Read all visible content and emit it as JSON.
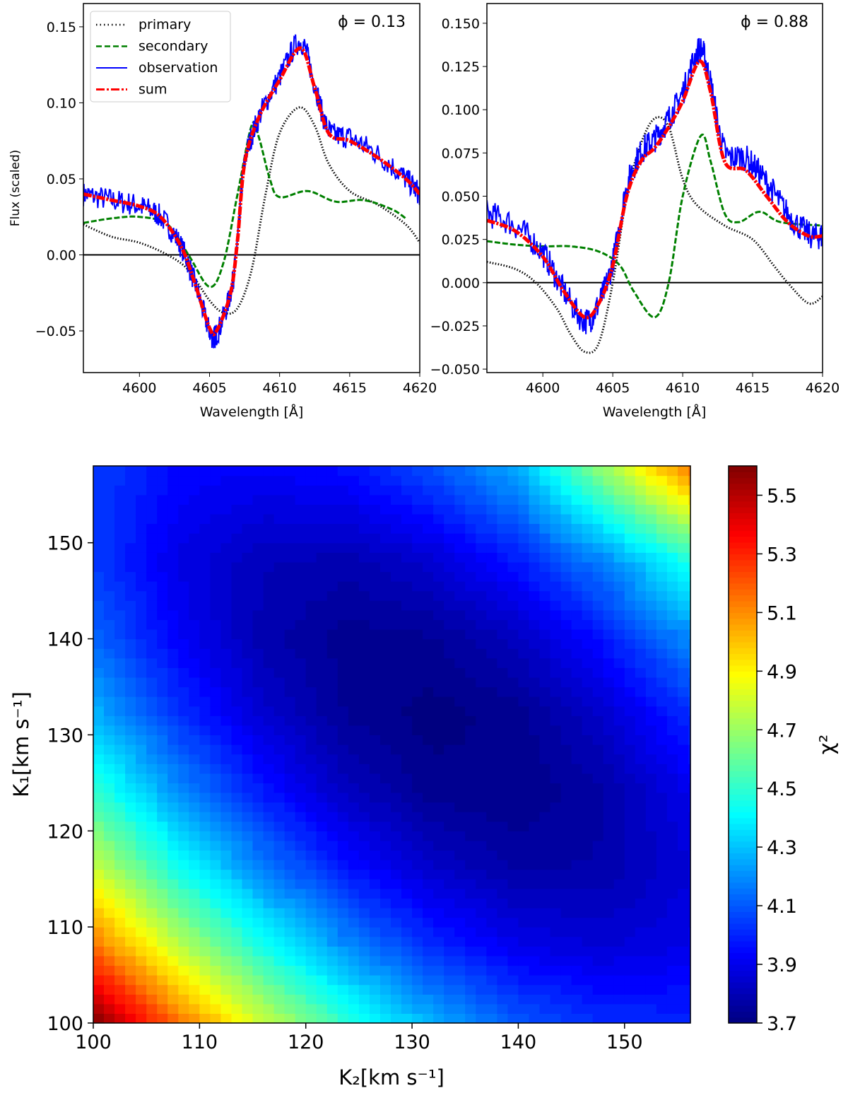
{
  "chart_data": [
    {
      "type": "line",
      "annotation": "ϕ = 0.13",
      "xlabel": "Wavelength [Å]",
      "ylabel": "Flux (scaled)",
      "xlim": [
        4596,
        4620
      ],
      "ylim": [
        -0.0774,
        0.1653
      ],
      "xticks": [
        4600,
        4605,
        4610,
        4615,
        4620
      ],
      "yticks": [
        -0.05,
        0.0,
        0.05,
        0.1,
        0.15
      ],
      "ytick_labels": [
        "−0.05",
        "0.00",
        "0.05",
        "0.10",
        "0.15"
      ],
      "hline": 0,
      "legend": {
        "placement": "upper-left",
        "entries": [
          "primary",
          "secondary",
          "observation",
          "sum"
        ]
      },
      "series": [
        {
          "name": "primary",
          "color": "#000000",
          "style": "dotted",
          "x": [
            4596,
            4598,
            4600,
            4602,
            4603.5,
            4605,
            4606,
            4607,
            4608,
            4609,
            4610,
            4611.4,
            4612.5,
            4613.5,
            4615,
            4617,
            4619,
            4620
          ],
          "y": [
            0.02,
            0.012,
            0.008,
            0.0,
            -0.01,
            -0.03,
            -0.038,
            -0.035,
            -0.01,
            0.04,
            0.08,
            0.097,
            0.085,
            0.06,
            0.042,
            0.033,
            0.02,
            0.008
          ]
        },
        {
          "name": "secondary",
          "color": "#008000",
          "style": "dashed",
          "x": [
            4596,
            4598,
            4600,
            4602,
            4603.5,
            4605,
            4606,
            4607,
            4608,
            4608.5,
            4609.3,
            4610,
            4612,
            4614,
            4616,
            4618,
            4619
          ],
          "y": [
            0.021,
            0.024,
            0.025,
            0.02,
            0.0,
            -0.021,
            -0.005,
            0.04,
            0.085,
            0.078,
            0.05,
            0.038,
            0.042,
            0.035,
            0.036,
            0.03,
            0.024
          ]
        },
        {
          "name": "observation",
          "color": "#0000ff",
          "style": "solid",
          "x": [
            4596,
            4598,
            4600,
            4601.5,
            4603,
            4604,
            4605,
            4605.5,
            4606.5,
            4607,
            4607.5,
            4608.5,
            4610,
            4611.5,
            4612.5,
            4613.5,
            4615,
            4617,
            4619,
            4620
          ],
          "y": [
            0.04,
            0.036,
            0.032,
            0.025,
            0.005,
            -0.02,
            -0.05,
            -0.052,
            -0.025,
            0.01,
            0.06,
            0.09,
            0.117,
            0.14,
            0.112,
            0.082,
            0.077,
            0.066,
            0.05,
            0.04
          ]
        },
        {
          "name": "sum",
          "color": "#ff0000",
          "style": "dashdot",
          "x": [
            4596,
            4598,
            4600,
            4601.5,
            4603,
            4604,
            4605,
            4605.5,
            4606.5,
            4607,
            4607.5,
            4608.5,
            4610,
            4611.5,
            4612.5,
            4613.5,
            4615,
            4617,
            4619,
            4620
          ],
          "y": [
            0.04,
            0.036,
            0.032,
            0.025,
            0.005,
            -0.02,
            -0.048,
            -0.05,
            -0.025,
            0.01,
            0.06,
            0.09,
            0.115,
            0.136,
            0.11,
            0.08,
            0.075,
            0.064,
            0.05,
            0.04
          ]
        }
      ]
    },
    {
      "type": "line",
      "annotation": "ϕ = 0.88",
      "xlabel": "Wavelength [Å]",
      "ylabel": "",
      "xlim": [
        4596,
        4620
      ],
      "ylim": [
        -0.052,
        0.1614
      ],
      "xticks": [
        4600,
        4605,
        4610,
        4615,
        4620
      ],
      "yticks": [
        -0.05,
        -0.025,
        0.0,
        0.025,
        0.05,
        0.075,
        0.1,
        0.125,
        0.15
      ],
      "ytick_labels": [
        "−0.050",
        "−0.025",
        "0.000",
        "0.025",
        "0.050",
        "0.075",
        "0.100",
        "0.125",
        "0.150"
      ],
      "hline": 0,
      "series": [
        {
          "name": "primary",
          "color": "#000000",
          "style": "dotted",
          "x": [
            4596,
            4598,
            4599.5,
            4601,
            4602,
            4603,
            4604,
            4605,
            4606,
            4607,
            4608,
            4609,
            4610,
            4611,
            4613,
            4615,
            4616.5,
            4617.5,
            4619,
            4620
          ],
          "y": [
            0.012,
            0.008,
            0.0,
            -0.015,
            -0.03,
            -0.04,
            -0.035,
            0.0,
            0.05,
            0.08,
            0.095,
            0.09,
            0.06,
            0.045,
            0.033,
            0.025,
            0.01,
            0.0,
            -0.012,
            -0.008
          ]
        },
        {
          "name": "secondary",
          "color": "#008000",
          "style": "dashed",
          "x": [
            4596,
            4598,
            4600,
            4602,
            4604,
            4605.5,
            4606.5,
            4608,
            4609,
            4610,
            4611.3,
            4612,
            4613,
            4614,
            4615.5,
            4617,
            4620
          ],
          "y": [
            0.024,
            0.022,
            0.021,
            0.021,
            0.018,
            0.01,
            -0.005,
            -0.02,
            0.0,
            0.05,
            0.085,
            0.07,
            0.04,
            0.035,
            0.041,
            0.035,
            0.033
          ]
        },
        {
          "name": "observation",
          "color": "#0000ff",
          "style": "solid",
          "x": [
            4596,
            4598,
            4600,
            4601.5,
            4603,
            4604,
            4605,
            4606,
            4607,
            4608,
            4609,
            4610,
            4611.2,
            4612,
            4613,
            4614.5,
            4616,
            4617.5,
            4619,
            4620
          ],
          "y": [
            0.04,
            0.033,
            0.017,
            -0.005,
            -0.022,
            -0.012,
            0.012,
            0.055,
            0.075,
            0.083,
            0.095,
            0.11,
            0.135,
            0.115,
            0.076,
            0.072,
            0.058,
            0.04,
            0.028,
            0.027
          ]
        },
        {
          "name": "sum",
          "color": "#ff0000",
          "style": "dashdot",
          "x": [
            4596,
            4598,
            4600,
            4601.5,
            4603,
            4604,
            4605,
            4606,
            4607,
            4608,
            4609,
            4610,
            4611.2,
            4612,
            4613,
            4614.5,
            4616,
            4617.5,
            4619,
            4620
          ],
          "y": [
            0.036,
            0.03,
            0.015,
            -0.005,
            -0.02,
            -0.012,
            0.01,
            0.05,
            0.07,
            0.078,
            0.09,
            0.105,
            0.128,
            0.11,
            0.07,
            0.065,
            0.05,
            0.035,
            0.027,
            0.027
          ]
        }
      ]
    },
    {
      "type": "heatmap",
      "xlabel": "K₂[km s⁻¹]",
      "ylabel": "K₁[km s⁻¹]",
      "colorbar_label": "χ²",
      "colormap": "jet",
      "xlim": [
        100,
        156.2
      ],
      "ylim": [
        100,
        158
      ],
      "clim": [
        3.7,
        5.6
      ],
      "xticks": [
        100,
        110,
        120,
        130,
        140,
        150
      ],
      "yticks": [
        100,
        110,
        120,
        130,
        140,
        150
      ],
      "cticks": [
        "3.7",
        "3.9",
        "4.1",
        "4.3",
        "4.5",
        "4.7",
        "4.9",
        "5.1",
        "5.3",
        "5.5"
      ],
      "grid_x": [
        100,
        108,
        116,
        124,
        132,
        140,
        148,
        156
      ],
      "grid_y": [
        100,
        108,
        116,
        124,
        132,
        140,
        148,
        158
      ],
      "z": [
        [
          5.6,
          5.16,
          4.79,
          4.49,
          4.26,
          4.1,
          4.02,
          4.0
        ],
        [
          5.16,
          4.77,
          4.45,
          4.19,
          4.01,
          3.9,
          3.86,
          3.9
        ],
        [
          4.8,
          4.45,
          4.18,
          3.97,
          3.84,
          3.77,
          3.78,
          3.86
        ],
        [
          4.51,
          4.21,
          3.98,
          3.82,
          3.73,
          3.72,
          3.77,
          3.9
        ],
        [
          4.28,
          4.03,
          3.85,
          3.74,
          3.7,
          3.73,
          3.84,
          4.01
        ],
        [
          4.13,
          3.93,
          3.79,
          3.73,
          3.74,
          3.82,
          3.97,
          4.19
        ],
        [
          4.05,
          3.89,
          3.81,
          3.79,
          3.85,
          3.98,
          4.18,
          4.45
        ],
        [
          4.05,
          3.95,
          3.93,
          3.97,
          4.09,
          4.27,
          4.7,
          5.15
        ]
      ]
    }
  ]
}
